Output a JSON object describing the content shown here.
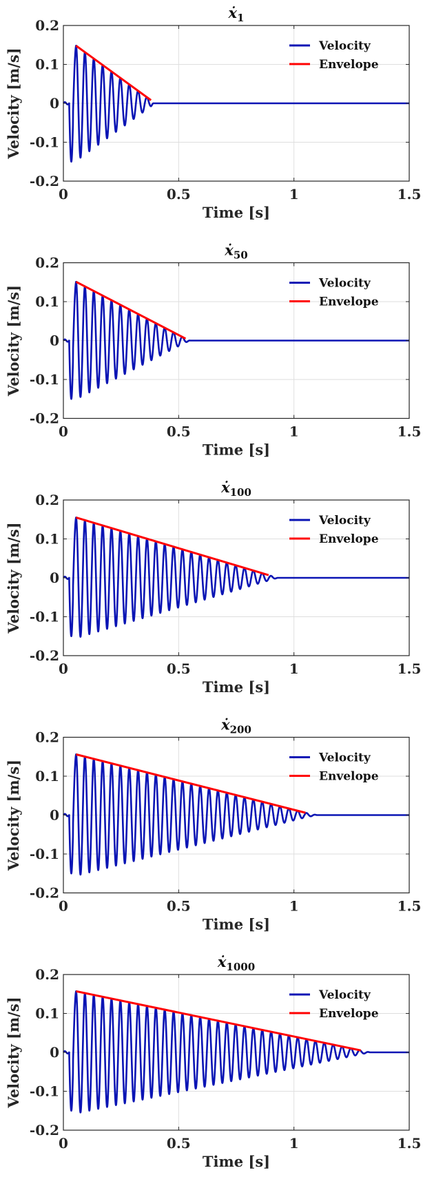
{
  "colors": {
    "velocity": "#0a14b4",
    "envelope": "#ff0000",
    "grid": "#dedede",
    "axis": "#262626"
  },
  "chart_data": [
    {
      "type": "line",
      "title": "ẋ",
      "title_subscript": "1",
      "xlabel": "Time [s]",
      "ylabel": "Velocity [m/s]",
      "xlim": [
        0,
        1.5
      ],
      "ylim": [
        -0.2,
        0.2
      ],
      "xticks": [
        "0",
        "0.5",
        "1",
        "1.5"
      ],
      "yticks": [
        "0.2",
        "0.1",
        "0",
        "-0.1",
        "-0.2"
      ],
      "grid": true,
      "legend": "top-right",
      "oscillation_frequency_hz": 26,
      "series": [
        {
          "name": "Velocity",
          "peak_start": [
            0.055,
            0.148
          ],
          "ring_end_s": 0.39
        },
        {
          "name": "Envelope",
          "x": [
            0.055,
            0.38
          ],
          "y": [
            0.148,
            0.008
          ]
        }
      ]
    },
    {
      "type": "line",
      "title": "ẋ",
      "title_subscript": "50",
      "xlabel": "Time [s]",
      "ylabel": "Velocity [m/s]",
      "xlim": [
        0,
        1.5
      ],
      "ylim": [
        -0.2,
        0.2
      ],
      "xticks": [
        "0",
        "0.5",
        "1",
        "1.5"
      ],
      "yticks": [
        "0.2",
        "0.1",
        "0",
        "-0.1",
        "-0.2"
      ],
      "grid": true,
      "legend": "top-right",
      "oscillation_frequency_hz": 26,
      "series": [
        {
          "name": "Velocity",
          "peak_start": [
            0.055,
            0.151
          ],
          "ring_end_s": 0.55
        },
        {
          "name": "Envelope",
          "x": [
            0.055,
            0.53
          ],
          "y": [
            0.151,
            0.005
          ]
        }
      ]
    },
    {
      "type": "line",
      "title": "ẋ",
      "title_subscript": "100",
      "xlabel": "Time [s]",
      "ylabel": "Velocity [m/s]",
      "xlim": [
        0,
        1.5
      ],
      "ylim": [
        -0.2,
        0.2
      ],
      "xticks": [
        "0",
        "0.5",
        "1",
        "1.5"
      ],
      "yticks": [
        "0.2",
        "0.1",
        "0",
        "-0.1",
        "-0.2"
      ],
      "grid": true,
      "legend": "top-right",
      "oscillation_frequency_hz": 26,
      "series": [
        {
          "name": "Velocity",
          "peak_start": [
            0.055,
            0.155
          ],
          "ring_end_s": 0.93
        },
        {
          "name": "Envelope",
          "x": [
            0.055,
            0.89
          ],
          "y": [
            0.155,
            0.007
          ]
        }
      ]
    },
    {
      "type": "line",
      "title": "ẋ",
      "title_subscript": "200",
      "xlabel": "Time [s]",
      "ylabel": "Velocity [m/s]",
      "xlim": [
        0,
        1.5
      ],
      "ylim": [
        -0.2,
        0.2
      ],
      "xticks": [
        "0",
        "0.5",
        "1",
        "1.5"
      ],
      "yticks": [
        "0.2",
        "0.1",
        "0",
        "-0.1",
        "-0.2"
      ],
      "grid": true,
      "legend": "top-right",
      "oscillation_frequency_hz": 26,
      "series": [
        {
          "name": "Velocity",
          "peak_start": [
            0.055,
            0.156
          ],
          "ring_end_s": 1.1
        },
        {
          "name": "Envelope",
          "x": [
            0.055,
            1.05
          ],
          "y": [
            0.156,
            0.006
          ]
        }
      ]
    },
    {
      "type": "line",
      "title": "ẋ",
      "title_subscript": "1000",
      "xlabel": "Time [s]",
      "ylabel": "Velocity [m/s]",
      "xlim": [
        0,
        1.5
      ],
      "ylim": [
        -0.2,
        0.2
      ],
      "xticks": [
        "0",
        "0.5",
        "1",
        "1.5"
      ],
      "yticks": [
        "0.2",
        "0.1",
        "0",
        "-0.1",
        "-0.2"
      ],
      "grid": true,
      "legend": "top-right",
      "oscillation_frequency_hz": 26,
      "series": [
        {
          "name": "Velocity",
          "peak_start": [
            0.055,
            0.157
          ],
          "ring_end_s": 1.33
        },
        {
          "name": "Envelope",
          "x": [
            0.055,
            1.29
          ],
          "y": [
            0.157,
            0.005
          ]
        }
      ]
    }
  ]
}
